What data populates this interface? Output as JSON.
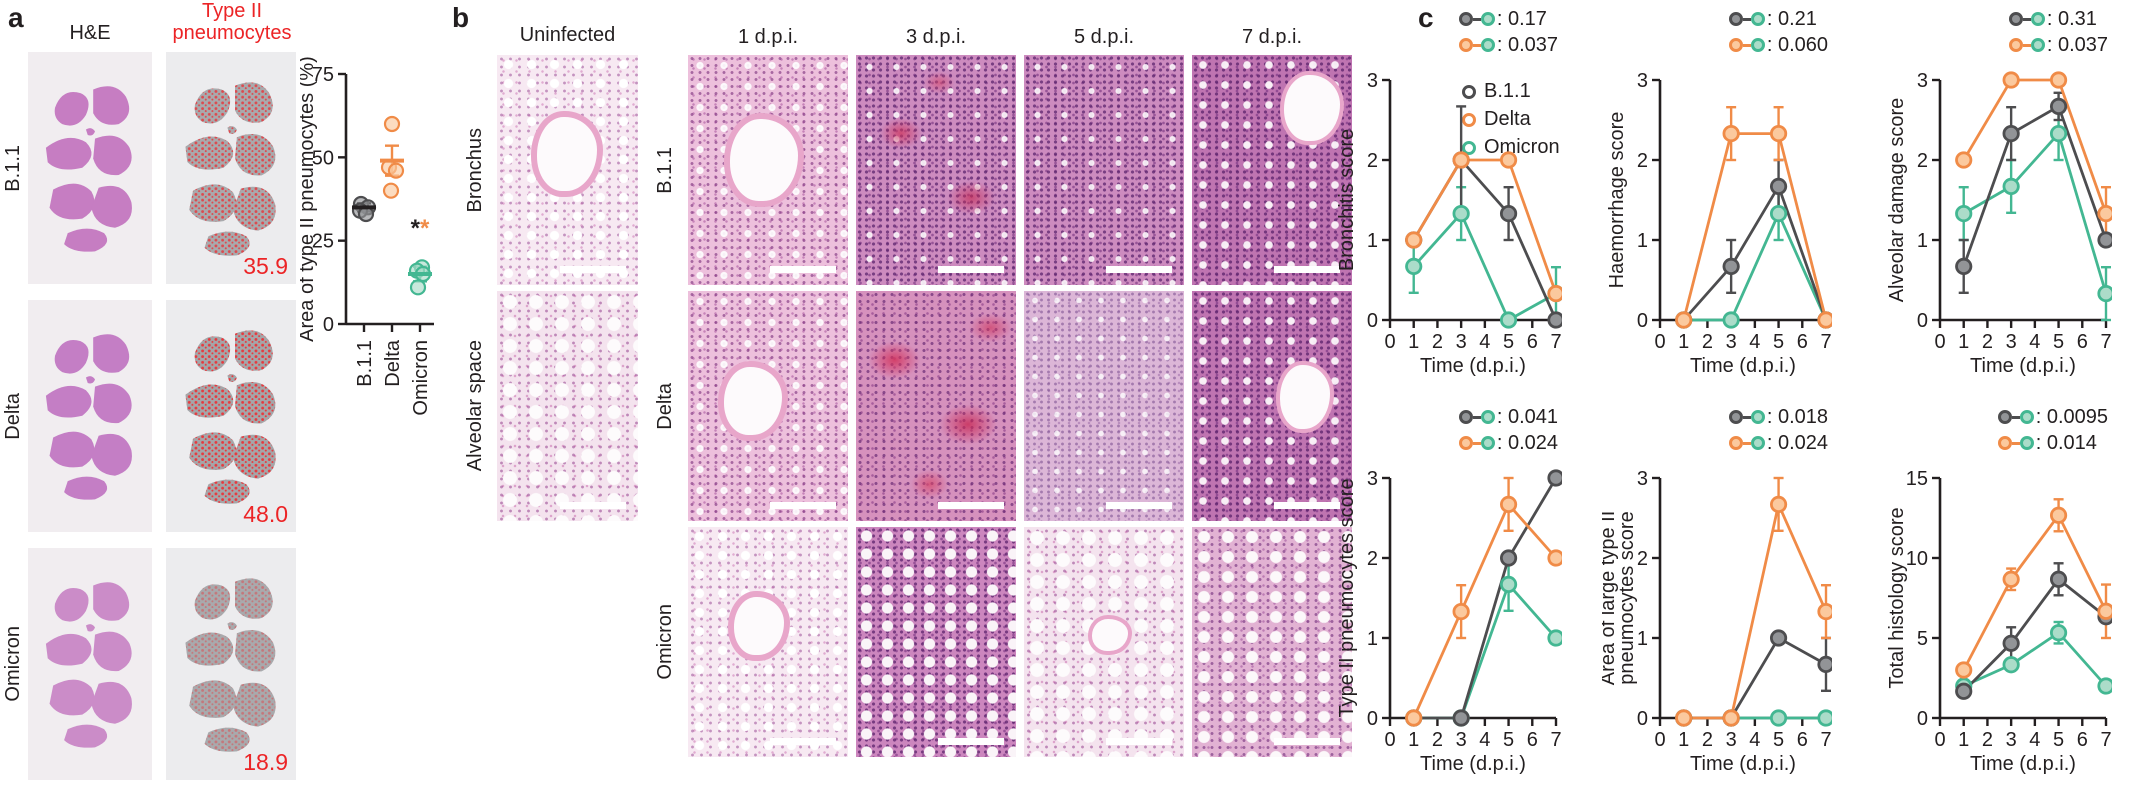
{
  "colors": {
    "black": "#231f20",
    "red": "#ec2426",
    "b11_stroke": "#4d4d4f",
    "b11_fill": "#929497",
    "delta_stroke": "#f08b47",
    "delta_fill": "#fbc99e",
    "omicron_stroke": "#43b792",
    "omicron_fill": "#abdcc9"
  },
  "panel_a": {
    "label": "a",
    "he_header": "H&E",
    "typeii_header": [
      "Type II",
      "pneumocytes"
    ],
    "rows": [
      {
        "variant": "B.1.1",
        "value": "35.9"
      },
      {
        "variant": "Delta",
        "value": "48.0"
      },
      {
        "variant": "Omicron",
        "value": "18.9"
      }
    ]
  },
  "panel_b": {
    "label": "b",
    "uninfected_header": "Uninfected",
    "structure_labels": [
      "Bronchus",
      "Alveolar space"
    ],
    "timepoints": [
      "1 d.p.i.",
      "3 d.p.i.",
      "5 d.p.i.",
      "7 d.p.i."
    ],
    "variants": [
      "B.1.1",
      "Delta",
      "Omicron"
    ]
  },
  "panel_c": {
    "label": "c",
    "legend": [
      {
        "name": "B.1.1",
        "key": "b11"
      },
      {
        "name": "Delta",
        "key": "delta"
      },
      {
        "name": "Omicron",
        "key": "omicron"
      }
    ]
  },
  "chart_data": [
    {
      "type": "scatter",
      "id": "area-typeii-scatter",
      "ylabel": "Area of type II pneumocytes (%)",
      "ylim": [
        0,
        75
      ],
      "yticks": [
        0,
        25,
        50,
        75
      ],
      "categories": [
        "B.1.1",
        "Delta",
        "Omicron"
      ],
      "series": [
        {
          "name": "B.1.1",
          "key": "b11",
          "stat": "black",
          "points": [
            36,
            35,
            34,
            33
          ],
          "jitter": [
            -3,
            4,
            -4,
            2
          ],
          "mean": 35,
          "sem": 1.2
        },
        {
          "name": "Delta",
          "key": "delta",
          "stat": "delta",
          "points": [
            60,
            47,
            46,
            40
          ],
          "jitter": [
            0,
            -3,
            4,
            -1
          ],
          "mean": 49,
          "sem": 4.5
        },
        {
          "name": "Omicron",
          "key": "omicron",
          "stat": "omicron",
          "points": [
            17,
            16,
            15,
            11
          ],
          "jitter": [
            2,
            -3,
            3,
            -2
          ],
          "mean": 15,
          "sem": 2.2
        }
      ],
      "significance": {
        "x_category": "Omicron",
        "y": 30,
        "symbols": [
          {
            "symbol": "*",
            "key": "black"
          },
          {
            "symbol": "*",
            "key": "delta"
          }
        ]
      }
    },
    {
      "type": "line",
      "id": "bronchitis",
      "legend": true,
      "ylabel": "Bronchitis score",
      "xlabel": "Time (d.p.i.)",
      "xlim": [
        0,
        7
      ],
      "ylim": [
        0,
        3
      ],
      "xticks": [
        0,
        1,
        2,
        3,
        4,
        5,
        6,
        7
      ],
      "yticks": [
        0,
        1,
        2,
        3
      ],
      "x": [
        1,
        3,
        5,
        7
      ],
      "series": [
        {
          "name": "B.1.1",
          "key": "b11",
          "values": [
            1,
            2,
            1.33,
            0
          ],
          "errors": [
            0,
            0.67,
            0.33,
            0
          ]
        },
        {
          "name": "Delta",
          "key": "delta",
          "values": [
            1,
            2,
            2,
            0.33
          ],
          "errors": [
            0,
            0,
            0,
            0
          ]
        },
        {
          "name": "Omicron",
          "key": "omicron",
          "values": [
            0.67,
            1.33,
            0,
            0.33
          ],
          "errors": [
            0.33,
            0.33,
            0,
            0.33
          ]
        }
      ],
      "pvalues": [
        {
          "a": "b11",
          "b": "omicron",
          "label": "0.17"
        },
        {
          "a": "delta",
          "b": "omicron",
          "label": "0.037"
        }
      ]
    },
    {
      "type": "line",
      "id": "haemorrhage",
      "legend": false,
      "ylabel": "Haemorrhage score",
      "xlabel": "Time (d.p.i.)",
      "xlim": [
        0,
        7
      ],
      "ylim": [
        0,
        3
      ],
      "xticks": [
        0,
        1,
        2,
        3,
        4,
        5,
        6,
        7
      ],
      "yticks": [
        0,
        1,
        2,
        3
      ],
      "x": [
        1,
        3,
        5,
        7
      ],
      "series": [
        {
          "name": "B.1.1",
          "key": "b11",
          "values": [
            0,
            0.67,
            1.67,
            0
          ],
          "errors": [
            0,
            0.33,
            0.33,
            0
          ]
        },
        {
          "name": "Delta",
          "key": "delta",
          "values": [
            0,
            2.33,
            2.33,
            0
          ],
          "errors": [
            0,
            0.33,
            0.33,
            0
          ]
        },
        {
          "name": "Omicron",
          "key": "omicron",
          "values": [
            0,
            0,
            1.33,
            0
          ],
          "errors": [
            0,
            0,
            0.33,
            0
          ]
        }
      ],
      "pvalues": [
        {
          "a": "b11",
          "b": "omicron",
          "label": "0.21"
        },
        {
          "a": "delta",
          "b": "omicron",
          "label": "0.060"
        }
      ]
    },
    {
      "type": "line",
      "id": "alveolar-damage",
      "legend": false,
      "ylabel": "Alveolar damage score",
      "xlabel": "Time (d.p.i.)",
      "xlim": [
        0,
        7
      ],
      "ylim": [
        0,
        3
      ],
      "xticks": [
        0,
        1,
        2,
        3,
        4,
        5,
        6,
        7
      ],
      "yticks": [
        0,
        1,
        2,
        3
      ],
      "x": [
        1,
        3,
        5,
        7
      ],
      "series": [
        {
          "name": "B.1.1",
          "key": "b11",
          "values": [
            0.67,
            2.33,
            2.67,
            1
          ],
          "errors": [
            0.33,
            0.33,
            0.17,
            0
          ]
        },
        {
          "name": "Delta",
          "key": "delta",
          "values": [
            2,
            3,
            3,
            1.33
          ],
          "errors": [
            0,
            0,
            0,
            0.33
          ]
        },
        {
          "name": "Omicron",
          "key": "omicron",
          "values": [
            1.33,
            1.67,
            2.33,
            0.33
          ],
          "errors": [
            0.33,
            0.33,
            0.33,
            0.33
          ]
        }
      ],
      "pvalues": [
        {
          "a": "b11",
          "b": "omicron",
          "label": "0.31"
        },
        {
          "a": "delta",
          "b": "omicron",
          "label": "0.037"
        }
      ]
    },
    {
      "type": "line",
      "id": "typeii-pneumocytes",
      "legend": false,
      "ylabel": "Type II pneumocytes score",
      "xlabel": "Time (d.p.i.)",
      "xlim": [
        0,
        7
      ],
      "ylim": [
        0,
        3
      ],
      "xticks": [
        0,
        1,
        2,
        3,
        4,
        5,
        6,
        7
      ],
      "yticks": [
        0,
        1,
        2,
        3
      ],
      "x": [
        1,
        3,
        5,
        7
      ],
      "series": [
        {
          "name": "B.1.1",
          "key": "b11",
          "values": [
            0,
            0,
            2,
            3
          ],
          "errors": [
            0,
            0,
            0,
            0
          ]
        },
        {
          "name": "Delta",
          "key": "delta",
          "values": [
            0,
            1.33,
            2.67,
            2
          ],
          "errors": [
            0,
            0.33,
            0.33,
            0
          ]
        },
        {
          "name": "Omicron",
          "key": "omicron",
          "values": [
            0,
            0,
            1.67,
            1
          ],
          "errors": [
            0,
            0,
            0.33,
            0
          ]
        }
      ],
      "pvalues": [
        {
          "a": "b11",
          "b": "omicron",
          "label": "0.041"
        },
        {
          "a": "delta",
          "b": "omicron",
          "label": "0.024"
        }
      ]
    },
    {
      "type": "line",
      "id": "large-typeii-area",
      "legend": false,
      "ylabel": "Area of large type II",
      "ylabel2": "pneumocytes score",
      "xlabel": "Time (d.p.i.)",
      "xlim": [
        0,
        7
      ],
      "ylim": [
        0,
        3
      ],
      "xticks": [
        0,
        1,
        2,
        3,
        4,
        5,
        6,
        7
      ],
      "yticks": [
        0,
        1,
        2,
        3
      ],
      "x": [
        1,
        3,
        5,
        7
      ],
      "series": [
        {
          "name": "B.1.1",
          "key": "b11",
          "values": [
            0,
            0,
            1,
            0.67
          ],
          "errors": [
            0,
            0,
            0,
            0.33
          ]
        },
        {
          "name": "Delta",
          "key": "delta",
          "values": [
            0,
            0,
            2.67,
            1.33
          ],
          "errors": [
            0,
            0,
            0.33,
            0.33
          ]
        },
        {
          "name": "Omicron",
          "key": "omicron",
          "values": [
            0,
            0,
            0,
            0
          ],
          "errors": [
            0,
            0,
            0,
            0
          ]
        }
      ],
      "pvalues": [
        {
          "a": "b11",
          "b": "omicron",
          "label": "0.018"
        },
        {
          "a": "delta",
          "b": "omicron",
          "label": "0.024"
        }
      ]
    },
    {
      "type": "line",
      "id": "total-histology",
      "legend": false,
      "ylabel": "Total histology score",
      "xlabel": "Time (d.p.i.)",
      "xlim": [
        0,
        7
      ],
      "ylim": [
        0,
        15
      ],
      "xticks": [
        0,
        1,
        2,
        3,
        4,
        5,
        6,
        7
      ],
      "yticks": [
        0,
        5,
        10,
        15
      ],
      "x": [
        1,
        3,
        5,
        7
      ],
      "series": [
        {
          "name": "B.1.1",
          "key": "b11",
          "values": [
            1.67,
            4.67,
            8.67,
            6.33
          ],
          "errors": [
            0.33,
            1,
            1,
            0
          ]
        },
        {
          "name": "Delta",
          "key": "delta",
          "values": [
            3,
            8.67,
            12.67,
            6.67
          ],
          "errors": [
            0.33,
            0.67,
            1,
            1.67
          ]
        },
        {
          "name": "Omicron",
          "key": "omicron",
          "values": [
            2,
            3.33,
            5.33,
            2
          ],
          "errors": [
            0.33,
            0.33,
            0.67,
            0.33
          ]
        }
      ],
      "pvalues": [
        {
          "a": "b11",
          "b": "omicron",
          "label": "0.0095"
        },
        {
          "a": "delta",
          "b": "omicron",
          "label": "0.014"
        }
      ]
    }
  ]
}
